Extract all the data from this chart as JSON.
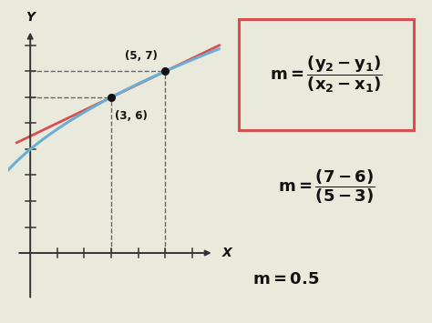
{
  "bg_color": "#e9e9dc",
  "curve_color": "#6aaed6",
  "secant_color": "#d94f4f",
  "point_color": "#111111",
  "dashed_color": "#666666",
  "box_edge_color": "#d94f4f",
  "axis_color": "#333333",
  "text_color": "#111111",
  "pt1": [
    3,
    6
  ],
  "pt2": [
    5,
    7
  ],
  "annotation_pt1": "(3, 6)",
  "annotation_pt2": "(5, 7)",
  "x_label": "X",
  "y_label": "Y"
}
